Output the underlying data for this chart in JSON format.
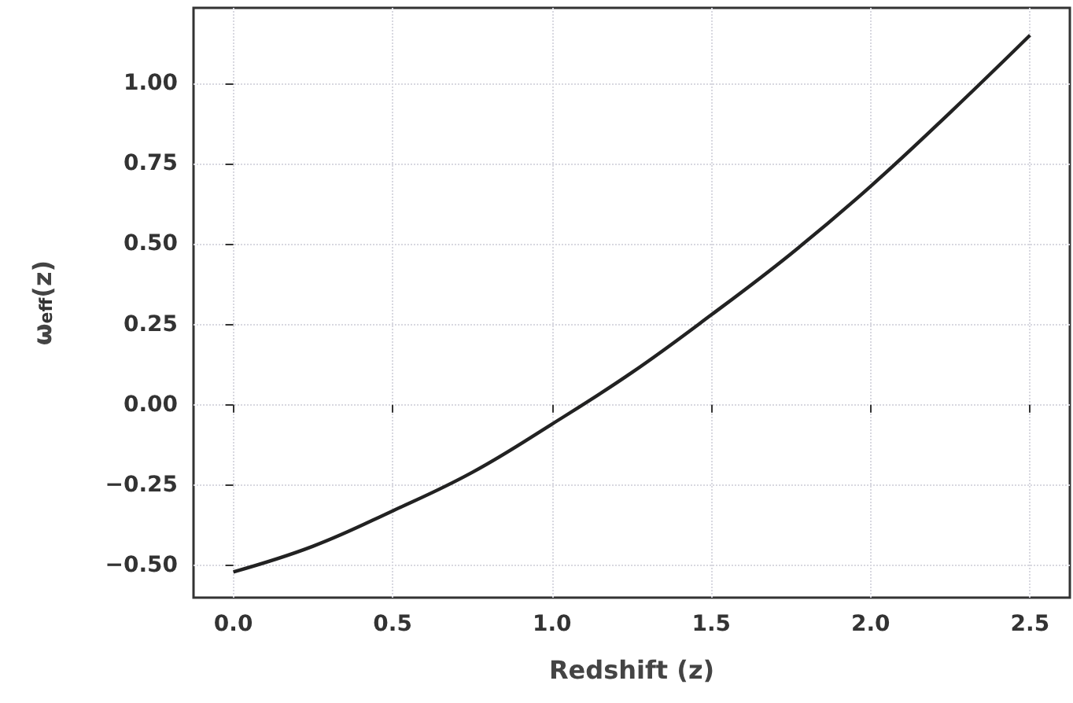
{
  "chart_data": {
    "type": "line",
    "xlabel": "Redshift (z)",
    "ylabel": "ω$_{eff}$(z)",
    "x": [
      0,
      0.25,
      0.5,
      0.75,
      1.0,
      1.25,
      1.5,
      1.75,
      2.0,
      2.25,
      2.5
    ],
    "series": [
      {
        "color": "#222222",
        "values": [
          -0.52,
          -0.44,
          -0.33,
          -0.21,
          -0.06,
          0.1,
          0.28,
          0.47,
          0.68,
          0.91,
          1.15
        ]
      }
    ],
    "xlim": [
      -0.125,
      2.625
    ],
    "ylim": [
      -0.6,
      1.235
    ],
    "xticks": [
      {
        "value": 0,
        "label": "0.0"
      },
      {
        "value": 0.5,
        "label": "0.5"
      },
      {
        "value": 1,
        "label": "1.0"
      },
      {
        "value": 1.5,
        "label": "1.5"
      },
      {
        "value": 2,
        "label": "2.0"
      },
      {
        "value": 2.5,
        "label": "2.5"
      }
    ],
    "yticks": [
      {
        "value": -0.5,
        "label": "−0.50"
      },
      {
        "value": -0.25,
        "label": "−0.25"
      },
      {
        "value": 0,
        "label": "0.00"
      },
      {
        "value": 0.25,
        "label": "0.25"
      },
      {
        "value": 0.5,
        "label": "0.50"
      },
      {
        "value": 0.75,
        "label": "0.75"
      },
      {
        "value": 1,
        "label": "1.00"
      }
    ],
    "grid": true,
    "marker": "none",
    "line_style": "solid"
  }
}
